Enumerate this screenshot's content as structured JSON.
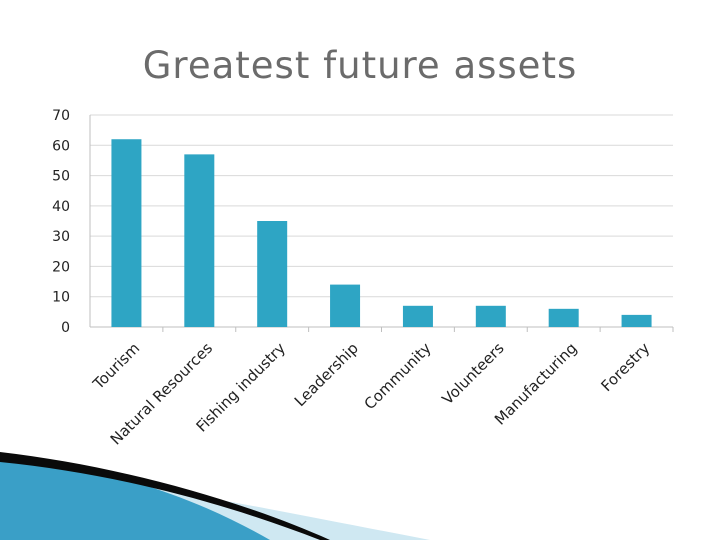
{
  "slide": {
    "title": "Greatest future assets"
  },
  "colors": {
    "bar": "#2ea5c4",
    "grid": "#d9d9d9",
    "axis": "#bfbfbf",
    "swoosh_dark": "#0a0a0a",
    "swoosh_blue": "#3a9fc7",
    "swoosh_light": "#cfe8f2"
  },
  "chart_data": {
    "type": "bar",
    "categories": [
      "Tourism",
      "Natural Resources",
      "Fishing industry",
      "Leadership",
      "Community",
      "Volunteers",
      "Manufacturing",
      "Forestry"
    ],
    "values": [
      62,
      57,
      35,
      14,
      7,
      7,
      6,
      4
    ],
    "title": "Greatest future assets",
    "xlabel": "",
    "ylabel": "",
    "ylim": [
      0,
      70
    ],
    "yticks": [
      0,
      10,
      20,
      30,
      40,
      50,
      60,
      70
    ],
    "grid": true,
    "legend": "none"
  }
}
